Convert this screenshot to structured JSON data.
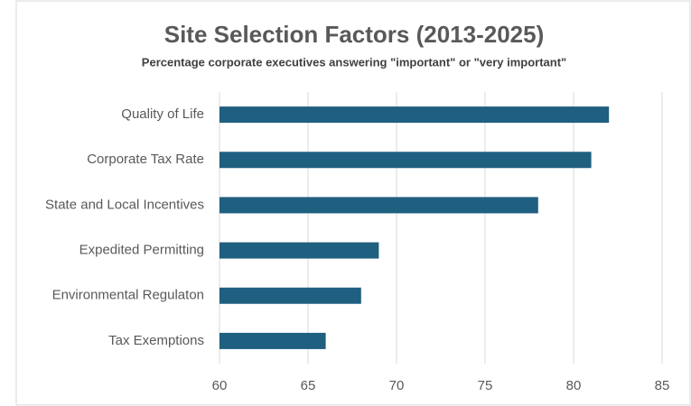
{
  "chart_data": {
    "type": "bar",
    "orientation": "horizontal",
    "title": "Site Selection Factors (2013-2025)",
    "subtitle": "Percentage corporate executives answering \"important\" or \"very important\"",
    "categories": [
      "Quality of Life",
      "Corporate Tax Rate",
      "State and Local Incentives",
      "Expedited Permitting",
      "Environmental Regulaton",
      "Tax Exemptions"
    ],
    "values": [
      82,
      81,
      78,
      69,
      68,
      66
    ],
    "color": "#1f5f80",
    "xlim": [
      60,
      85
    ],
    "xticks": [
      60,
      65,
      70,
      75,
      80,
      85
    ],
    "grid": true
  }
}
